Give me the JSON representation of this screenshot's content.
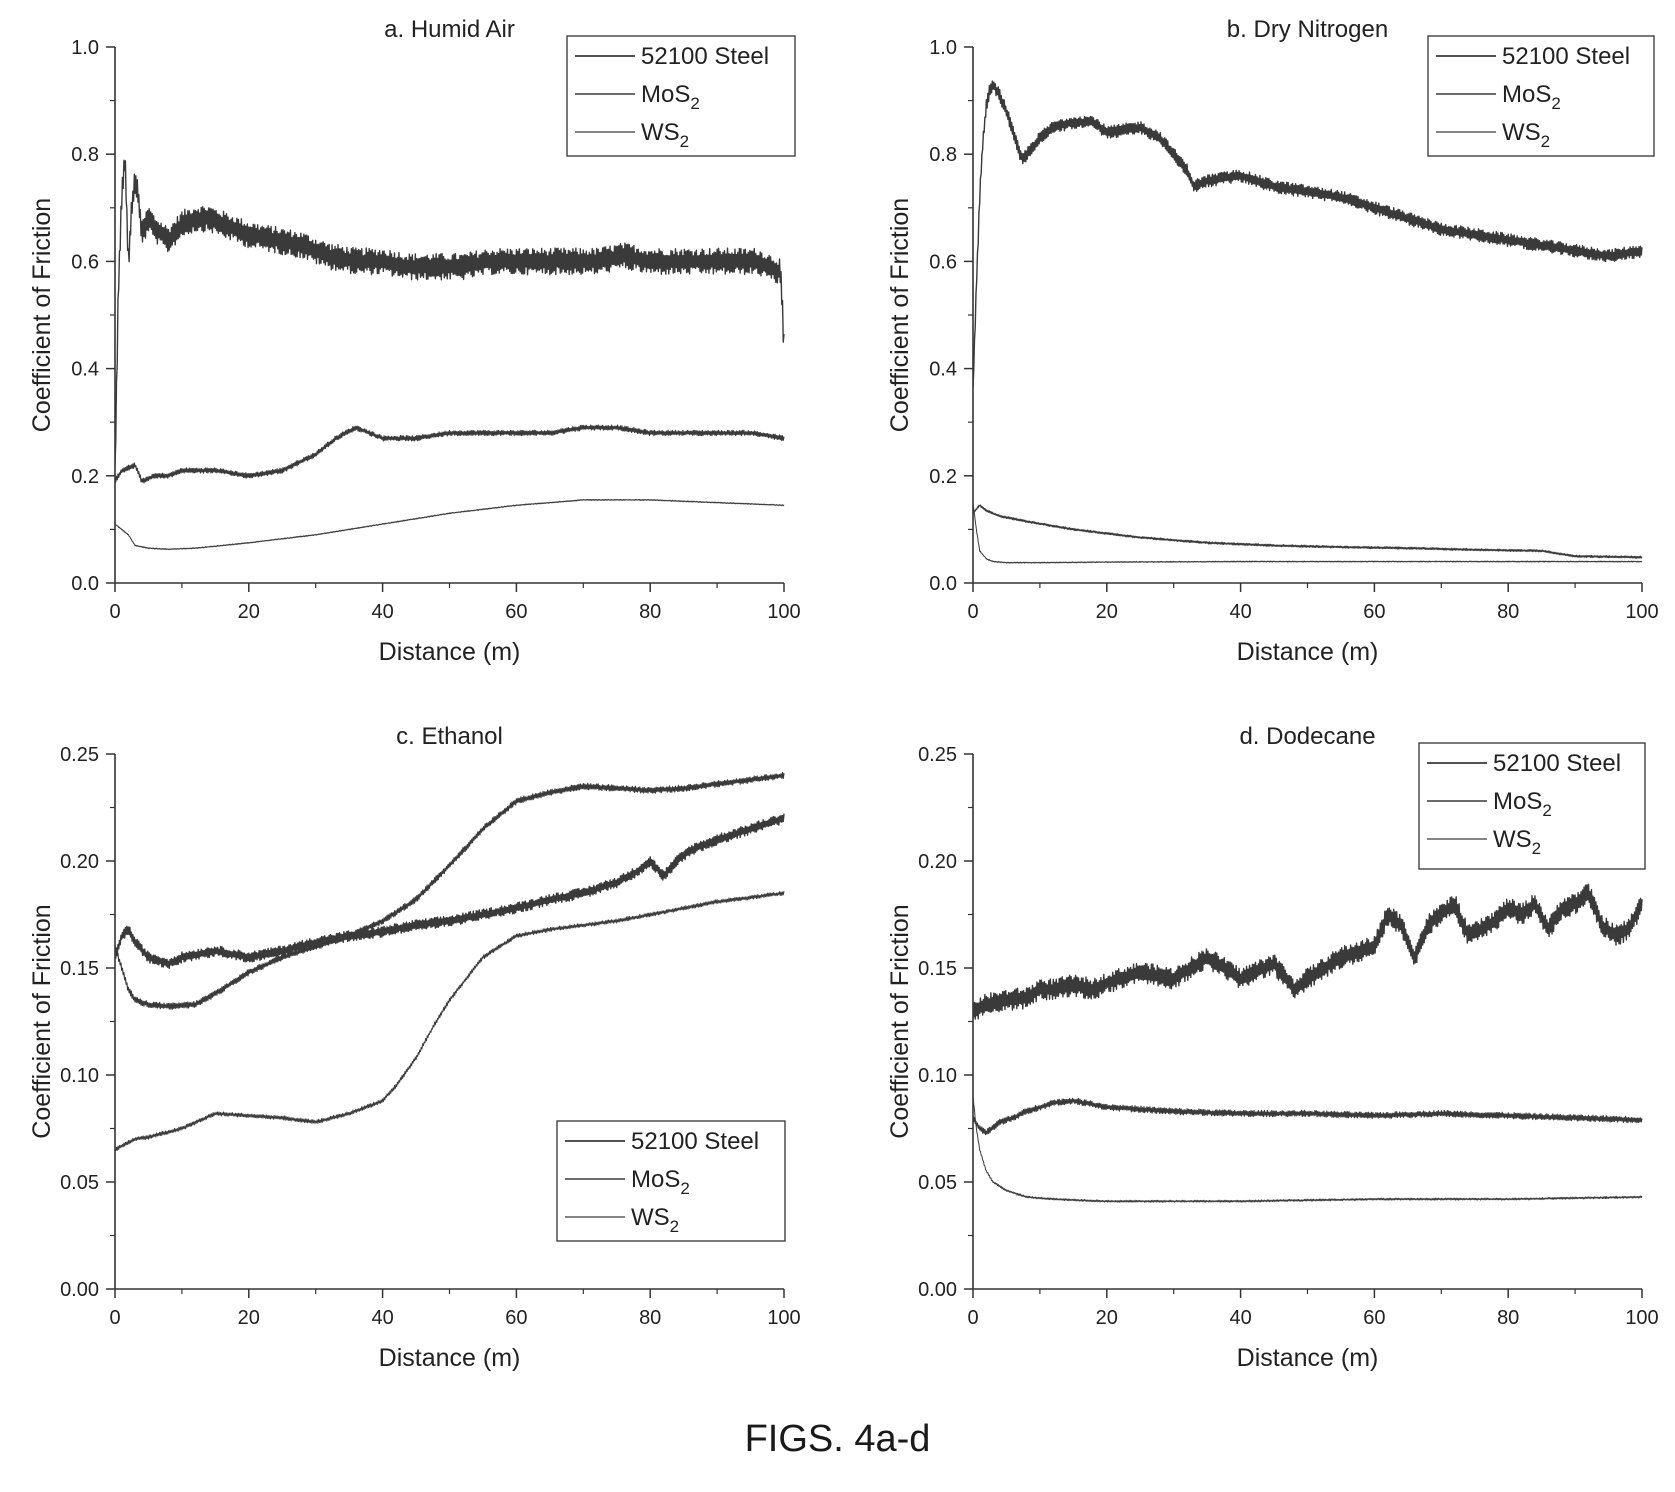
{
  "figure_caption": "FIGS. 4a-d",
  "chart_data": [
    {
      "type": "line",
      "title": "a. Humid Air",
      "xlabel": "Distance (m)",
      "ylabel": "Coefficient of Friction",
      "xlim": [
        0,
        100
      ],
      "ylim": [
        0,
        1.0
      ],
      "xticks": [
        "0",
        "20",
        "40",
        "60",
        "80",
        "100"
      ],
      "yticks": [
        "0.0",
        "0.2",
        "0.4",
        "0.6",
        "0.8",
        "1.0"
      ],
      "legend_position": "top-right",
      "grid": false,
      "series": [
        {
          "name": "52100 Steel",
          "base": "",
          "sub": "",
          "x": [
            0,
            0.5,
            1,
            1.5,
            2,
            2.5,
            3,
            3.5,
            4,
            5,
            6,
            8,
            10,
            12,
            14,
            16,
            18,
            20,
            24,
            28,
            32,
            36,
            40,
            44,
            48,
            52,
            56,
            60,
            64,
            68,
            72,
            76,
            80,
            84,
            88,
            92,
            96,
            99.5,
            100
          ],
          "y": [
            0.2,
            0.55,
            0.72,
            0.79,
            0.6,
            0.7,
            0.75,
            0.72,
            0.65,
            0.68,
            0.66,
            0.64,
            0.67,
            0.68,
            0.68,
            0.67,
            0.66,
            0.65,
            0.64,
            0.63,
            0.61,
            0.6,
            0.6,
            0.59,
            0.59,
            0.59,
            0.6,
            0.6,
            0.6,
            0.6,
            0.6,
            0.61,
            0.6,
            0.6,
            0.6,
            0.6,
            0.6,
            0.58,
            0.44
          ],
          "noise": 0.025
        },
        {
          "name": "",
          "base": "MoS",
          "sub": "2",
          "x": [
            0,
            1,
            3,
            4,
            6,
            8,
            10,
            15,
            20,
            25,
            30,
            33,
            36,
            38,
            40,
            45,
            50,
            55,
            60,
            65,
            70,
            75,
            80,
            85,
            90,
            95,
            100
          ],
          "y": [
            0.19,
            0.21,
            0.22,
            0.19,
            0.2,
            0.2,
            0.21,
            0.21,
            0.2,
            0.21,
            0.24,
            0.27,
            0.29,
            0.28,
            0.27,
            0.27,
            0.28,
            0.28,
            0.28,
            0.28,
            0.29,
            0.29,
            0.28,
            0.28,
            0.28,
            0.28,
            0.27
          ],
          "noise": 0.005
        },
        {
          "name": "",
          "base": "WS",
          "sub": "2",
          "x": [
            0,
            1,
            2,
            3,
            5,
            8,
            12,
            20,
            30,
            40,
            50,
            60,
            70,
            80,
            90,
            100
          ],
          "y": [
            0.11,
            0.1,
            0.09,
            0.07,
            0.065,
            0.063,
            0.065,
            0.075,
            0.09,
            0.11,
            0.13,
            0.145,
            0.155,
            0.155,
            0.15,
            0.145
          ],
          "noise": 0.001
        }
      ]
    },
    {
      "type": "line",
      "title": "b. Dry Nitrogen",
      "xlabel": "Distance (m)",
      "ylabel": "Coefficient of Friction",
      "xlim": [
        0,
        100
      ],
      "ylim": [
        0,
        1.0
      ],
      "xticks": [
        "0",
        "20",
        "40",
        "60",
        "80",
        "100"
      ],
      "yticks": [
        "0.0",
        "0.2",
        "0.4",
        "0.6",
        "0.8",
        "1.0"
      ],
      "legend_position": "top-right",
      "grid": false,
      "series": [
        {
          "name": "52100 Steel",
          "base": "",
          "sub": "",
          "x": [
            0,
            0.5,
            1,
            1.5,
            2,
            2.5,
            3,
            4,
            5,
            6,
            7,
            7.5,
            8,
            10,
            12,
            15,
            18,
            20,
            25,
            28,
            30,
            32,
            33,
            35,
            40,
            45,
            50,
            55,
            60,
            65,
            70,
            75,
            80,
            85,
            90,
            95,
            100
          ],
          "y": [
            0.36,
            0.55,
            0.72,
            0.83,
            0.89,
            0.92,
            0.93,
            0.91,
            0.88,
            0.84,
            0.8,
            0.79,
            0.8,
            0.83,
            0.85,
            0.86,
            0.86,
            0.84,
            0.85,
            0.83,
            0.8,
            0.77,
            0.74,
            0.75,
            0.76,
            0.74,
            0.73,
            0.72,
            0.7,
            0.68,
            0.66,
            0.65,
            0.64,
            0.63,
            0.62,
            0.61,
            0.62
          ],
          "noise": 0.012
        },
        {
          "name": "",
          "base": "MoS",
          "sub": "2",
          "x": [
            0,
            1,
            2,
            4,
            8,
            15,
            25,
            35,
            45,
            55,
            65,
            75,
            85,
            90,
            100
          ],
          "y": [
            0.13,
            0.145,
            0.135,
            0.125,
            0.115,
            0.1,
            0.085,
            0.075,
            0.07,
            0.067,
            0.065,
            0.062,
            0.06,
            0.05,
            0.048
          ],
          "noise": 0.002
        },
        {
          "name": "",
          "base": "WS",
          "sub": "2",
          "x": [
            0,
            0.5,
            1,
            2,
            3,
            5,
            10,
            20,
            40,
            60,
            80,
            100
          ],
          "y": [
            0.15,
            0.1,
            0.06,
            0.045,
            0.04,
            0.038,
            0.038,
            0.039,
            0.04,
            0.04,
            0.04,
            0.04
          ],
          "noise": 0.001
        }
      ]
    },
    {
      "type": "line",
      "title": "c. Ethanol",
      "xlabel": "Distance (m)",
      "ylabel": "Coefficient of Friction",
      "xlim": [
        0,
        100
      ],
      "ylim": [
        0,
        0.25
      ],
      "xticks": [
        "0",
        "20",
        "40",
        "60",
        "80",
        "100"
      ],
      "yticks": [
        "0.00",
        "0.05",
        "0.10",
        "0.15",
        "0.20",
        "0.25"
      ],
      "legend_position": "bottom-right",
      "grid": false,
      "series": [
        {
          "name": "52100 Steel",
          "base": "",
          "sub": "",
          "x": [
            0,
            1,
            2,
            3,
            5,
            8,
            10,
            15,
            20,
            25,
            30,
            35,
            40,
            45,
            50,
            55,
            60,
            65,
            70,
            75,
            78,
            80,
            82,
            84,
            86,
            90,
            95,
            100
          ],
          "y": [
            0.155,
            0.165,
            0.168,
            0.162,
            0.155,
            0.152,
            0.155,
            0.158,
            0.155,
            0.158,
            0.162,
            0.165,
            0.167,
            0.17,
            0.172,
            0.175,
            0.178,
            0.182,
            0.185,
            0.19,
            0.195,
            0.2,
            0.193,
            0.2,
            0.205,
            0.21,
            0.215,
            0.22
          ],
          "noise": 0.0025
        },
        {
          "name": "",
          "base": "MoS",
          "sub": "2",
          "x": [
            0,
            1,
            2,
            3,
            5,
            8,
            12,
            15,
            20,
            25,
            30,
            35,
            40,
            45,
            50,
            55,
            60,
            65,
            70,
            75,
            80,
            85,
            90,
            95,
            100
          ],
          "y": [
            0.16,
            0.15,
            0.14,
            0.135,
            0.133,
            0.132,
            0.133,
            0.138,
            0.148,
            0.155,
            0.16,
            0.165,
            0.172,
            0.182,
            0.198,
            0.215,
            0.228,
            0.232,
            0.235,
            0.234,
            0.233,
            0.234,
            0.236,
            0.238,
            0.24
          ],
          "noise": 0.0015
        },
        {
          "name": "",
          "base": "WS",
          "sub": "2",
          "x": [
            0,
            1,
            3,
            5,
            10,
            15,
            20,
            25,
            30,
            35,
            40,
            42,
            45,
            48,
            50,
            55,
            60,
            65,
            70,
            75,
            80,
            85,
            90,
            95,
            100
          ],
          "y": [
            0.065,
            0.067,
            0.07,
            0.071,
            0.075,
            0.082,
            0.081,
            0.08,
            0.078,
            0.082,
            0.088,
            0.095,
            0.108,
            0.125,
            0.135,
            0.155,
            0.165,
            0.168,
            0.17,
            0.172,
            0.175,
            0.178,
            0.181,
            0.183,
            0.185
          ],
          "noise": 0.001
        }
      ]
    },
    {
      "type": "line",
      "title": "d. Dodecane",
      "xlabel": "Distance (m)",
      "ylabel": "Coefficient of Friction",
      "xlim": [
        0,
        100
      ],
      "ylim": [
        0,
        0.25
      ],
      "xticks": [
        "0",
        "20",
        "40",
        "60",
        "80",
        "100"
      ],
      "yticks": [
        "0.00",
        "0.05",
        "0.10",
        "0.15",
        "0.20",
        "0.25"
      ],
      "legend_position": "top-right",
      "grid": false,
      "series": [
        {
          "name": "52100 Steel",
          "base": "",
          "sub": "",
          "x": [
            0,
            2,
            5,
            8,
            10,
            12,
            15,
            18,
            20,
            25,
            30,
            35,
            40,
            45,
            48,
            50,
            55,
            60,
            62,
            64,
            66,
            68,
            70,
            72,
            74,
            76,
            78,
            80,
            82,
            84,
            86,
            88,
            90,
            92,
            94,
            96,
            98,
            100
          ],
          "y": [
            0.13,
            0.133,
            0.135,
            0.136,
            0.14,
            0.14,
            0.142,
            0.14,
            0.143,
            0.148,
            0.145,
            0.155,
            0.145,
            0.152,
            0.14,
            0.145,
            0.155,
            0.16,
            0.175,
            0.17,
            0.155,
            0.17,
            0.175,
            0.18,
            0.165,
            0.168,
            0.172,
            0.178,
            0.175,
            0.18,
            0.168,
            0.178,
            0.18,
            0.185,
            0.17,
            0.165,
            0.168,
            0.18
          ],
          "noise": 0.005
        },
        {
          "name": "",
          "base": "MoS",
          "sub": "2",
          "x": [
            0,
            1,
            2,
            4,
            6,
            8,
            10,
            12,
            15,
            20,
            30,
            40,
            50,
            60,
            70,
            80,
            90,
            100
          ],
          "y": [
            0.08,
            0.075,
            0.073,
            0.078,
            0.08,
            0.083,
            0.085,
            0.087,
            0.088,
            0.085,
            0.083,
            0.082,
            0.082,
            0.081,
            0.082,
            0.081,
            0.08,
            0.079
          ],
          "noise": 0.0015
        },
        {
          "name": "",
          "base": "WS",
          "sub": "2",
          "x": [
            0,
            0.5,
            1,
            2,
            3,
            5,
            8,
            12,
            20,
            30,
            40,
            60,
            80,
            100
          ],
          "y": [
            0.09,
            0.075,
            0.065,
            0.055,
            0.05,
            0.046,
            0.043,
            0.042,
            0.041,
            0.041,
            0.041,
            0.042,
            0.042,
            0.043
          ],
          "noise": 0.0005
        }
      ]
    }
  ]
}
